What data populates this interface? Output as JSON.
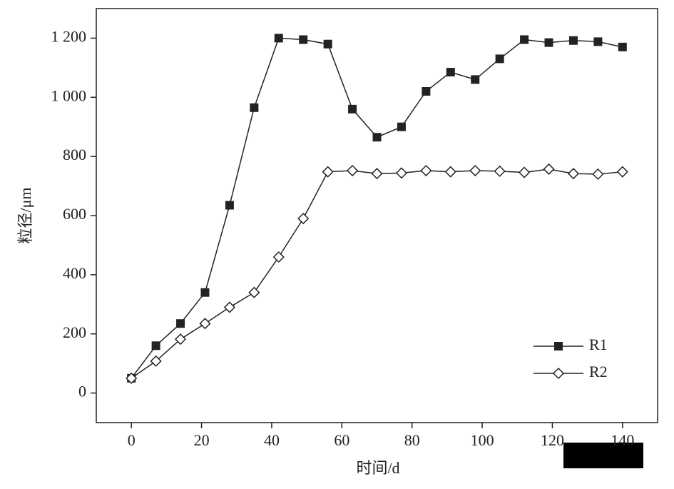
{
  "chart_data": {
    "type": "line",
    "x_label": "时间/d",
    "y_label": "粒径/μm",
    "x": [
      0,
      7,
      14,
      21,
      28,
      35,
      42,
      49,
      56,
      63,
      70,
      77,
      84,
      91,
      98,
      105,
      112,
      119,
      126,
      133,
      140
    ],
    "series": [
      {
        "name": "R1",
        "color": "#222222",
        "marker": "square",
        "values": [
          50,
          160,
          235,
          340,
          635,
          965,
          1200,
          1195,
          1180,
          960,
          865,
          900,
          1020,
          1085,
          1060,
          1130,
          1195,
          1185,
          1192,
          1188,
          1170
        ]
      },
      {
        "name": "R2",
        "color": "#222222",
        "marker": "diamond",
        "values": [
          50,
          108,
          182,
          235,
          290,
          340,
          460,
          590,
          748,
          752,
          742,
          744,
          752,
          748,
          752,
          750,
          746,
          757,
          742,
          740,
          748
        ]
      }
    ],
    "xlim": [
      -10,
      150
    ],
    "xticks": [
      0,
      20,
      40,
      60,
      80,
      100,
      120,
      140
    ],
    "ylim": [
      -100,
      1300
    ],
    "yticks": [
      0,
      200,
      400,
      600,
      800,
      {
        "value": 1000,
        "label": "1 000"
      },
      {
        "value": 1200,
        "label": "1 200"
      }
    ],
    "legend": "lower right",
    "grid": false
  }
}
